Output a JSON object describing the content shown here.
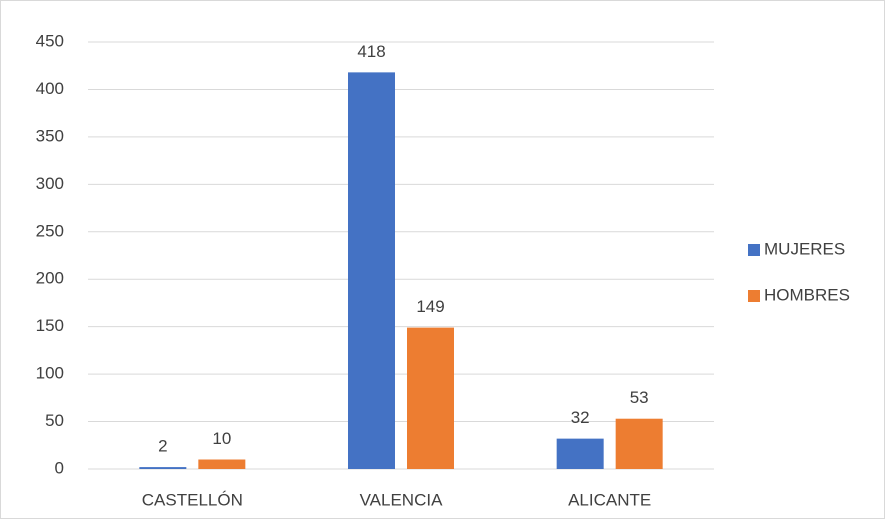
{
  "chart_data": {
    "type": "bar",
    "categories": [
      "CASTELLÓN",
      "VALENCIA",
      "ALICANTE"
    ],
    "series": [
      {
        "name": "MUJERES",
        "color": "#4472c4",
        "values": [
          2,
          418,
          32
        ]
      },
      {
        "name": "HOMBRES",
        "color": "#ed7d31",
        "values": [
          10,
          149,
          53
        ]
      }
    ],
    "ylim": [
      0,
      450
    ],
    "yticks": [
      0,
      50,
      100,
      150,
      200,
      250,
      300,
      350,
      400,
      450
    ],
    "grid": true,
    "legend": "right"
  }
}
